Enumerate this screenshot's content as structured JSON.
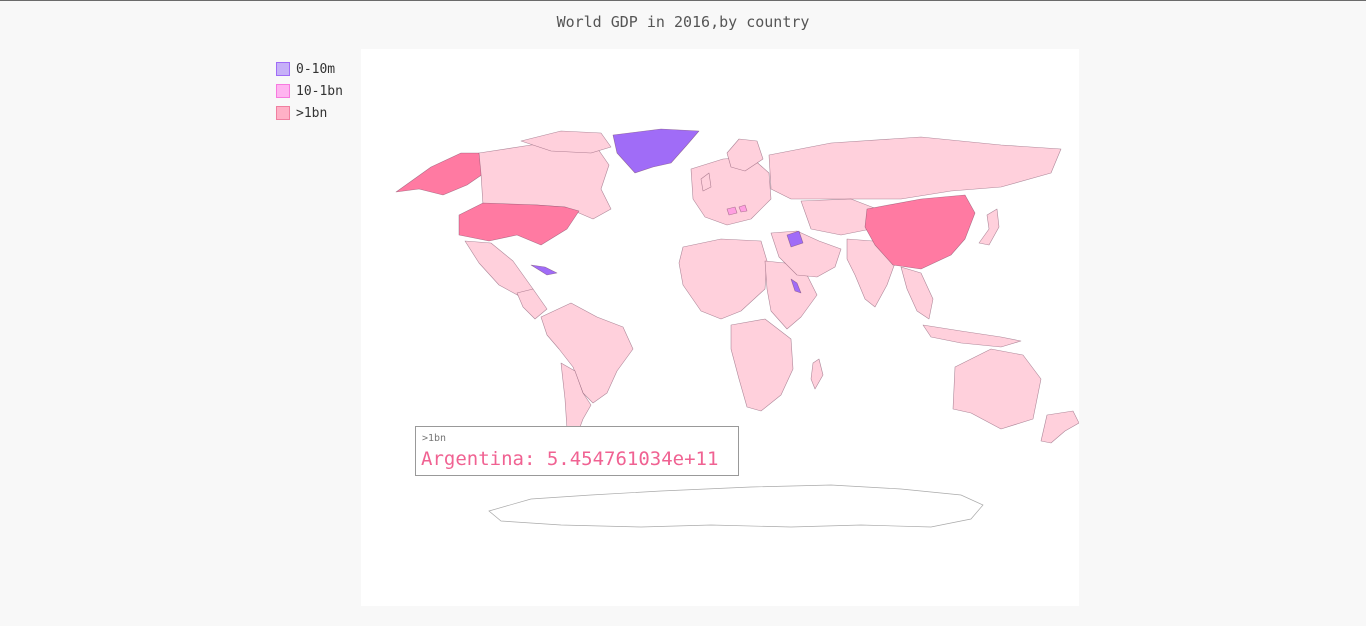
{
  "chart_data": {
    "type": "choropleth-map",
    "title": "World GDP in 2016,by country",
    "series": [
      {
        "name": "0-10m",
        "color": "#a06cf7",
        "countries": [
          "Greenland",
          "Syria",
          "Eritrea",
          "Cuba"
        ]
      },
      {
        "name": "10-1bn",
        "color": "#ff9fe0",
        "countries": [
          "Switzerland",
          "Slovenia"
        ]
      },
      {
        "name": ">1bn",
        "color": "#ffd0dc",
        "countries": [
          "Canada",
          "Mexico",
          "Brazil",
          "Argentina",
          "Russia",
          "India",
          "Australia",
          "Japan"
        ],
        "highlight_color": "#ff7aa2",
        "highlighted": [
          "United States",
          "China"
        ]
      }
    ],
    "legend_position": "top-left",
    "tooltip": {
      "series": ">1bn",
      "label": "Argentina: 5.454761034e+11"
    }
  }
}
